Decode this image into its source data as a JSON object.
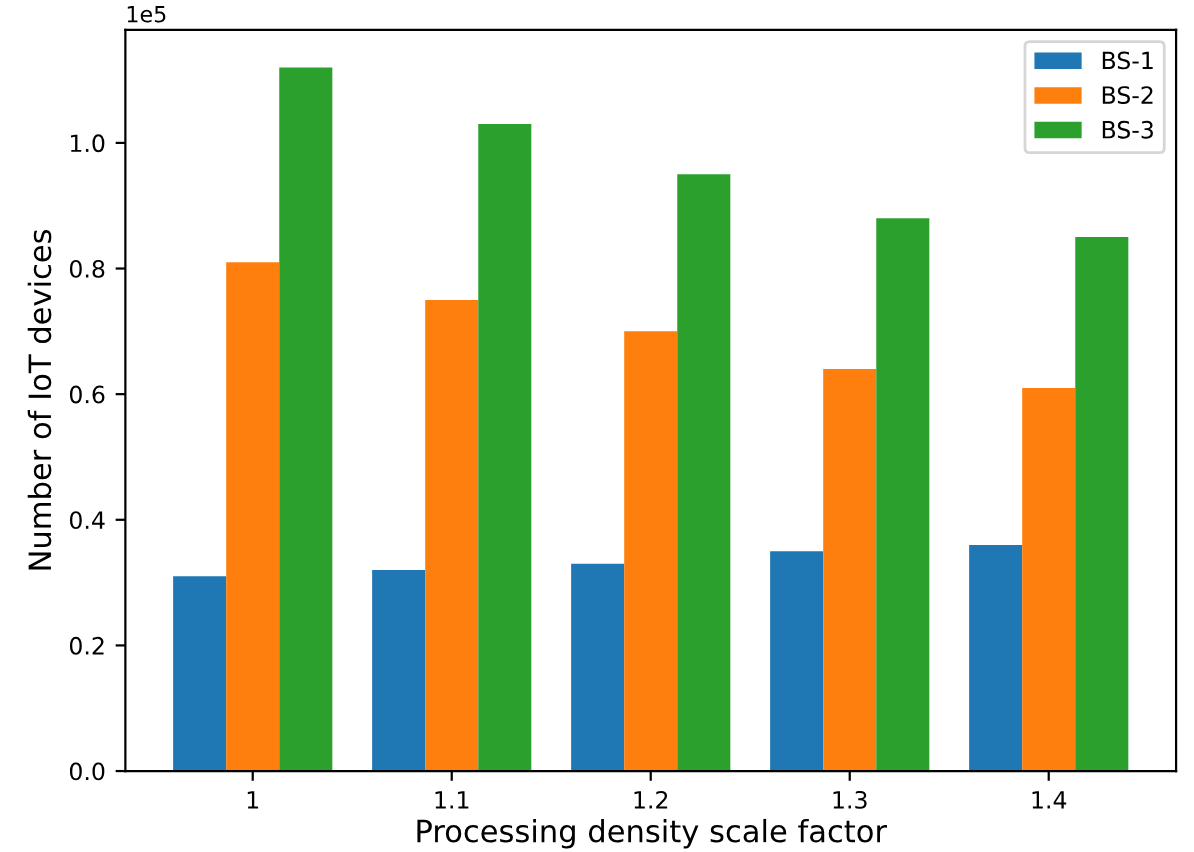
{
  "chart_data": {
    "type": "bar",
    "xlabel": "Processing density scale factor",
    "ylabel": "Number of IoT devices",
    "categories": [
      "1",
      "1.1",
      "1.2",
      "1.3",
      "1.4"
    ],
    "series": [
      {
        "name": "BS-1",
        "color": "#1f77b4",
        "values": [
          0.31,
          0.32,
          0.33,
          0.35,
          0.36
        ]
      },
      {
        "name": "BS-2",
        "color": "#ff7f0e",
        "values": [
          0.81,
          0.75,
          0.7,
          0.64,
          0.61
        ]
      },
      {
        "name": "BS-3",
        "color": "#2ca02c",
        "values": [
          1.12,
          1.03,
          0.95,
          0.88,
          0.85
        ]
      }
    ],
    "ylim": [
      0,
      1.18
    ],
    "yticks": [
      {
        "value": 0,
        "label": "0.0"
      },
      {
        "value": 0.2,
        "label": "0.2"
      },
      {
        "value": 0.4,
        "label": "0.4"
      },
      {
        "value": 0.6,
        "label": "0.6"
      },
      {
        "value": 0.8,
        "label": "0.8"
      },
      {
        "value": 1.0,
        "label": "1.0"
      }
    ],
    "annotations": [
      "1e5"
    ],
    "legend": "top right",
    "grid": false
  }
}
